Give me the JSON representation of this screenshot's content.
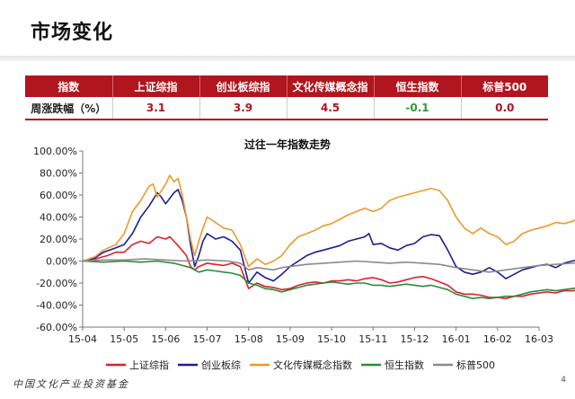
{
  "page_title": "市场变化",
  "table": {
    "headers": [
      "指数",
      "上证综指",
      "创业板综指",
      "文化传媒概念指",
      "恒生指数",
      "标普500"
    ],
    "row_label": "周涨跌幅（%）",
    "values": [
      "3.1",
      "3.9",
      "4.5",
      "-0.1",
      "0.0"
    ]
  },
  "footer": {
    "logo_text": "中国文化产业投资基金",
    "page_number": "4"
  },
  "chart_data": {
    "type": "line",
    "title": "过往一年指数走势",
    "xlabel": "",
    "ylabel": "",
    "x": [
      "15-04",
      "15-05",
      "15-06",
      "15-07",
      "15-08",
      "15-09",
      "15-10",
      "15-11",
      "15-12",
      "16-01",
      "16-02",
      "16-03"
    ],
    "ylim": [
      -60,
      100
    ],
    "yticks": [
      "100.00%",
      "80.00%",
      "60.00%",
      "40.00%",
      "20.00%",
      "0.00%",
      "-20.00%",
      "-40.00%",
      "-60.00%"
    ],
    "grid": false,
    "legend_position": "bottom",
    "series": [
      {
        "name": "上证综指",
        "color": "#d8222c",
        "points": [
          [
            0,
            0
          ],
          [
            0.3,
            2
          ],
          [
            0.6,
            5
          ],
          [
            0.8,
            8
          ],
          [
            1.0,
            8
          ],
          [
            1.2,
            15
          ],
          [
            1.4,
            18
          ],
          [
            1.6,
            16
          ],
          [
            1.8,
            22
          ],
          [
            2.0,
            20
          ],
          [
            2.1,
            22
          ],
          [
            2.3,
            14
          ],
          [
            2.5,
            5
          ],
          [
            2.6,
            -5
          ],
          [
            2.7,
            -8
          ],
          [
            2.8,
            -5
          ],
          [
            3.0,
            -2
          ],
          [
            3.2,
            -3
          ],
          [
            3.4,
            -4
          ],
          [
            3.6,
            -2
          ],
          [
            3.8,
            -5
          ],
          [
            3.9,
            -15
          ],
          [
            4.0,
            -25
          ],
          [
            4.2,
            -20
          ],
          [
            4.4,
            -23
          ],
          [
            4.6,
            -24
          ],
          [
            4.8,
            -26
          ],
          [
            5.0,
            -25
          ],
          [
            5.2,
            -22
          ],
          [
            5.4,
            -20
          ],
          [
            5.6,
            -19
          ],
          [
            5.8,
            -20
          ],
          [
            6.0,
            -18
          ],
          [
            6.2,
            -18
          ],
          [
            6.4,
            -17
          ],
          [
            6.6,
            -18
          ],
          [
            6.8,
            -16
          ],
          [
            7.0,
            -15
          ],
          [
            7.2,
            -17
          ],
          [
            7.4,
            -20
          ],
          [
            7.6,
            -19
          ],
          [
            7.8,
            -17
          ],
          [
            8.0,
            -15
          ],
          [
            8.2,
            -14
          ],
          [
            8.4,
            -16
          ],
          [
            8.6,
            -19
          ],
          [
            8.8,
            -22
          ],
          [
            9.0,
            -28
          ],
          [
            9.2,
            -30
          ],
          [
            9.4,
            -30
          ],
          [
            9.6,
            -31
          ],
          [
            9.8,
            -33
          ],
          [
            10.0,
            -33
          ],
          [
            10.2,
            -34
          ],
          [
            10.4,
            -32
          ],
          [
            10.6,
            -32
          ],
          [
            10.8,
            -30
          ],
          [
            11.0,
            -29
          ],
          [
            11.2,
            -28
          ],
          [
            11.4,
            -29
          ],
          [
            11.6,
            -27
          ],
          [
            11.8,
            -27
          ],
          [
            12.0,
            -26
          ]
        ]
      },
      {
        "name": "创业板综",
        "color": "#1d1d98",
        "points": [
          [
            0,
            0
          ],
          [
            0.3,
            3
          ],
          [
            0.5,
            8
          ],
          [
            0.8,
            12
          ],
          [
            1.0,
            15
          ],
          [
            1.2,
            25
          ],
          [
            1.4,
            40
          ],
          [
            1.6,
            50
          ],
          [
            1.8,
            62
          ],
          [
            1.9,
            58
          ],
          [
            2.0,
            52
          ],
          [
            2.2,
            62
          ],
          [
            2.3,
            65
          ],
          [
            2.4,
            55
          ],
          [
            2.5,
            40
          ],
          [
            2.6,
            15
          ],
          [
            2.7,
            -5
          ],
          [
            2.8,
            5
          ],
          [
            2.9,
            18
          ],
          [
            3.0,
            25
          ],
          [
            3.2,
            20
          ],
          [
            3.4,
            22
          ],
          [
            3.6,
            18
          ],
          [
            3.8,
            10
          ],
          [
            3.9,
            -5
          ],
          [
            4.0,
            -20
          ],
          [
            4.2,
            -10
          ],
          [
            4.4,
            -15
          ],
          [
            4.6,
            -18
          ],
          [
            4.8,
            -12
          ],
          [
            5.0,
            -5
          ],
          [
            5.2,
            0
          ],
          [
            5.4,
            5
          ],
          [
            5.6,
            8
          ],
          [
            5.8,
            10
          ],
          [
            6.0,
            12
          ],
          [
            6.2,
            14
          ],
          [
            6.4,
            18
          ],
          [
            6.6,
            20
          ],
          [
            6.8,
            22
          ],
          [
            6.9,
            25
          ],
          [
            7.0,
            15
          ],
          [
            7.2,
            16
          ],
          [
            7.4,
            12
          ],
          [
            7.6,
            10
          ],
          [
            7.8,
            14
          ],
          [
            8.0,
            16
          ],
          [
            8.2,
            22
          ],
          [
            8.4,
            24
          ],
          [
            8.6,
            23
          ],
          [
            8.8,
            10
          ],
          [
            9.0,
            -5
          ],
          [
            9.2,
            -10
          ],
          [
            9.4,
            -12
          ],
          [
            9.6,
            -10
          ],
          [
            9.8,
            -6
          ],
          [
            10.0,
            -10
          ],
          [
            10.2,
            -16
          ],
          [
            10.4,
            -12
          ],
          [
            10.6,
            -8
          ],
          [
            10.8,
            -6
          ],
          [
            11.0,
            -4
          ],
          [
            11.2,
            -3
          ],
          [
            11.4,
            -6
          ],
          [
            11.6,
            -2
          ],
          [
            11.8,
            0
          ],
          [
            12.0,
            2
          ]
        ]
      },
      {
        "name": "文化传媒概念指数",
        "color": "#ee9a2a",
        "points": [
          [
            0,
            0
          ],
          [
            0.3,
            4
          ],
          [
            0.5,
            10
          ],
          [
            0.8,
            15
          ],
          [
            1.0,
            25
          ],
          [
            1.2,
            45
          ],
          [
            1.4,
            55
          ],
          [
            1.6,
            68
          ],
          [
            1.7,
            70
          ],
          [
            1.8,
            58
          ],
          [
            2.0,
            70
          ],
          [
            2.1,
            78
          ],
          [
            2.2,
            72
          ],
          [
            2.3,
            75
          ],
          [
            2.4,
            60
          ],
          [
            2.5,
            40
          ],
          [
            2.6,
            20
          ],
          [
            2.7,
            5
          ],
          [
            2.8,
            18
          ],
          [
            2.9,
            30
          ],
          [
            3.0,
            40
          ],
          [
            3.2,
            35
          ],
          [
            3.4,
            30
          ],
          [
            3.6,
            28
          ],
          [
            3.8,
            15
          ],
          [
            3.9,
            5
          ],
          [
            4.0,
            -5
          ],
          [
            4.2,
            2
          ],
          [
            4.4,
            -3
          ],
          [
            4.6,
            0
          ],
          [
            4.8,
            5
          ],
          [
            5.0,
            15
          ],
          [
            5.2,
            22
          ],
          [
            5.4,
            25
          ],
          [
            5.6,
            28
          ],
          [
            5.8,
            32
          ],
          [
            6.0,
            34
          ],
          [
            6.2,
            38
          ],
          [
            6.4,
            42
          ],
          [
            6.6,
            45
          ],
          [
            6.8,
            48
          ],
          [
            7.0,
            45
          ],
          [
            7.2,
            48
          ],
          [
            7.4,
            55
          ],
          [
            7.6,
            58
          ],
          [
            7.8,
            60
          ],
          [
            8.0,
            62
          ],
          [
            8.2,
            64
          ],
          [
            8.4,
            66
          ],
          [
            8.6,
            64
          ],
          [
            8.8,
            55
          ],
          [
            9.0,
            40
          ],
          [
            9.2,
            30
          ],
          [
            9.4,
            25
          ],
          [
            9.6,
            30
          ],
          [
            9.8,
            25
          ],
          [
            10.0,
            22
          ],
          [
            10.2,
            15
          ],
          [
            10.4,
            18
          ],
          [
            10.6,
            25
          ],
          [
            10.8,
            28
          ],
          [
            11.0,
            30
          ],
          [
            11.2,
            32
          ],
          [
            11.4,
            35
          ],
          [
            11.6,
            34
          ],
          [
            11.8,
            36
          ],
          [
            12.0,
            40
          ]
        ]
      },
      {
        "name": "恒生指数",
        "color": "#2c8a3c",
        "points": [
          [
            0,
            0
          ],
          [
            0.5,
            -1
          ],
          [
            1.0,
            0
          ],
          [
            1.4,
            -1
          ],
          [
            1.8,
            0
          ],
          [
            2.2,
            -2
          ],
          [
            2.6,
            -6
          ],
          [
            2.8,
            -10
          ],
          [
            3.0,
            -8
          ],
          [
            3.2,
            -9
          ],
          [
            3.4,
            -10
          ],
          [
            3.6,
            -11
          ],
          [
            3.8,
            -13
          ],
          [
            4.0,
            -20
          ],
          [
            4.2,
            -22
          ],
          [
            4.4,
            -25
          ],
          [
            4.6,
            -26
          ],
          [
            4.8,
            -28
          ],
          [
            5.0,
            -26
          ],
          [
            5.2,
            -24
          ],
          [
            5.4,
            -22
          ],
          [
            5.6,
            -21
          ],
          [
            5.8,
            -20
          ],
          [
            6.0,
            -19
          ],
          [
            6.2,
            -20
          ],
          [
            6.4,
            -21
          ],
          [
            6.6,
            -20
          ],
          [
            6.8,
            -20
          ],
          [
            7.0,
            -22
          ],
          [
            7.2,
            -22
          ],
          [
            7.4,
            -23
          ],
          [
            7.6,
            -22
          ],
          [
            7.8,
            -21
          ],
          [
            8.0,
            -22
          ],
          [
            8.2,
            -23
          ],
          [
            8.4,
            -22
          ],
          [
            8.6,
            -24
          ],
          [
            8.8,
            -26
          ],
          [
            9.0,
            -30
          ],
          [
            9.2,
            -32
          ],
          [
            9.4,
            -34
          ],
          [
            9.6,
            -33
          ],
          [
            9.8,
            -34
          ],
          [
            10.0,
            -33
          ],
          [
            10.2,
            -32
          ],
          [
            10.4,
            -32
          ],
          [
            10.6,
            -30
          ],
          [
            10.8,
            -28
          ],
          [
            11.0,
            -27
          ],
          [
            11.2,
            -26
          ],
          [
            11.4,
            -27
          ],
          [
            11.6,
            -26
          ],
          [
            11.8,
            -25
          ],
          [
            12.0,
            -24
          ]
        ]
      },
      {
        "name": "标普500",
        "color": "#8a8a8a",
        "points": [
          [
            0,
            0
          ],
          [
            0.5,
            1
          ],
          [
            1.0,
            1
          ],
          [
            1.5,
            2
          ],
          [
            2.0,
            1
          ],
          [
            2.5,
            0
          ],
          [
            3.0,
            1
          ],
          [
            3.5,
            0
          ],
          [
            3.8,
            -2
          ],
          [
            4.0,
            -8
          ],
          [
            4.2,
            -6
          ],
          [
            4.4,
            -7
          ],
          [
            4.6,
            -8
          ],
          [
            4.8,
            -6
          ],
          [
            5.0,
            -5
          ],
          [
            5.4,
            -3
          ],
          [
            5.8,
            -2
          ],
          [
            6.2,
            -1
          ],
          [
            6.6,
            0
          ],
          [
            7.0,
            -1
          ],
          [
            7.4,
            -2
          ],
          [
            7.8,
            -1
          ],
          [
            8.2,
            -2
          ],
          [
            8.6,
            -3
          ],
          [
            9.0,
            -6
          ],
          [
            9.4,
            -8
          ],
          [
            9.8,
            -10
          ],
          [
            10.2,
            -8
          ],
          [
            10.6,
            -6
          ],
          [
            11.0,
            -4
          ],
          [
            11.4,
            -3
          ],
          [
            11.8,
            -2
          ],
          [
            12.0,
            -1
          ]
        ]
      }
    ]
  }
}
